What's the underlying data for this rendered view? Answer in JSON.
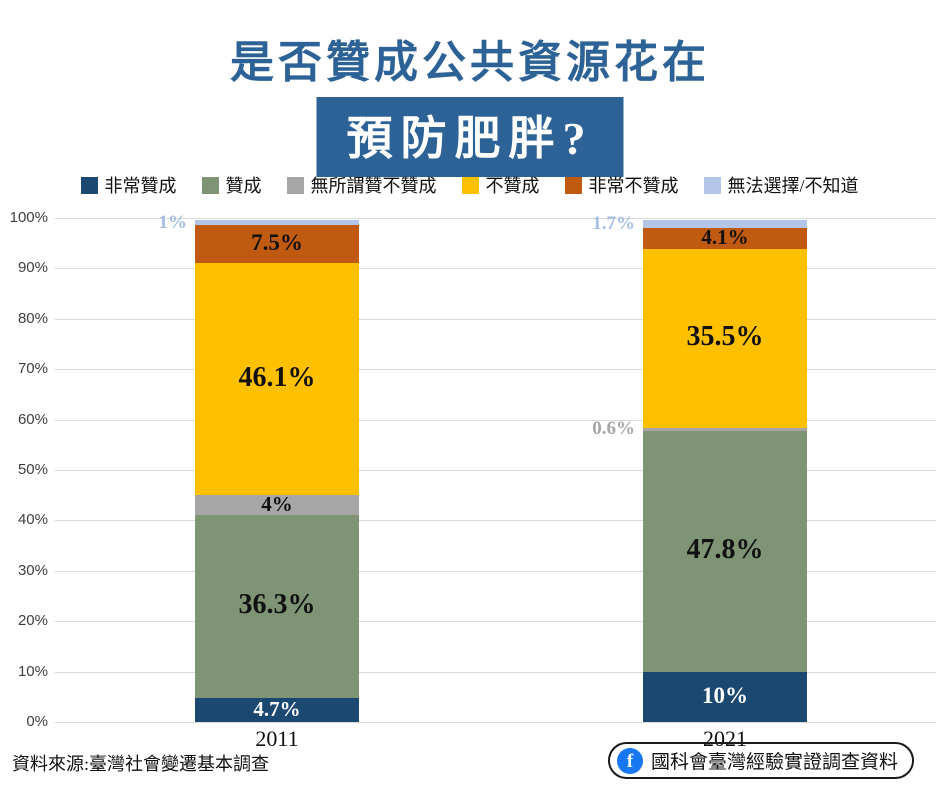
{
  "title": {
    "line1": "是否贊成公共資源花在",
    "line2": "預防肥胖?",
    "color": "#2D6296",
    "highlight_bg": "#2D6296",
    "highlight_text_color": "#FFFFFF"
  },
  "legend": [
    {
      "label": "非常贊成",
      "color": "#1B4871"
    },
    {
      "label": "贊成",
      "color": "#7E9474"
    },
    {
      "label": "無所謂贊不贊成",
      "color": "#A6A6A6"
    },
    {
      "label": "不贊成",
      "color": "#FFC000"
    },
    {
      "label": "非常不贊成",
      "color": "#C05A11"
    },
    {
      "label": "無法選擇/不知道",
      "color": "#B3C6E7"
    }
  ],
  "chart_data": {
    "type": "bar",
    "stacked": true,
    "orientation": "vertical",
    "categories": [
      "2011",
      "2021"
    ],
    "series": [
      {
        "name": "非常贊成",
        "color": "#1B4871",
        "values": [
          4.7,
          10
        ],
        "labels": [
          "4.7%",
          "10%"
        ],
        "label_color": "#FFFFFF",
        "label_placement": "inside"
      },
      {
        "name": "贊成",
        "color": "#7E9474",
        "values": [
          36.3,
          47.8
        ],
        "labels": [
          "36.3%",
          "47.8%"
        ],
        "label_color": "#111111",
        "label_placement": "inside"
      },
      {
        "name": "無所謂贊不贊成",
        "color": "#A6A6A6",
        "values": [
          4,
          0.6
        ],
        "labels": [
          "4%",
          "0.6%"
        ],
        "label_color": "#111111",
        "outside_label_color": "#A6A6A6"
      },
      {
        "name": "不贊成",
        "color": "#FFC000",
        "values": [
          46.1,
          35.5
        ],
        "labels": [
          "46.1%",
          "35.5%"
        ],
        "label_color": "#111111",
        "label_placement": "inside"
      },
      {
        "name": "非常不贊成",
        "color": "#C05A11",
        "values": [
          7.5,
          4.1
        ],
        "labels": [
          "7.5%",
          "4.1%"
        ],
        "label_color": "#111111",
        "label_placement": "inside"
      },
      {
        "name": "無法選擇/不知道",
        "color": "#B3C6E7",
        "values": [
          1,
          1.7
        ],
        "labels": [
          "1%",
          "1.7%"
        ],
        "label_color": "#111111",
        "outside_label_color": "#A3BEE2"
      }
    ],
    "ylim": [
      0,
      100
    ],
    "yticks": [
      "0%",
      "10%",
      "20%",
      "30%",
      "40%",
      "50%",
      "60%",
      "70%",
      "80%",
      "90%",
      "100%"
    ],
    "grid": true,
    "grid_color": "#D9D9D9",
    "legend_position": "top"
  },
  "footer": {
    "source": "資料來源:臺灣社會變遷基本調查",
    "fb_label": "國科會臺灣經驗實證調查資料",
    "fb_color": "#1877F2"
  }
}
